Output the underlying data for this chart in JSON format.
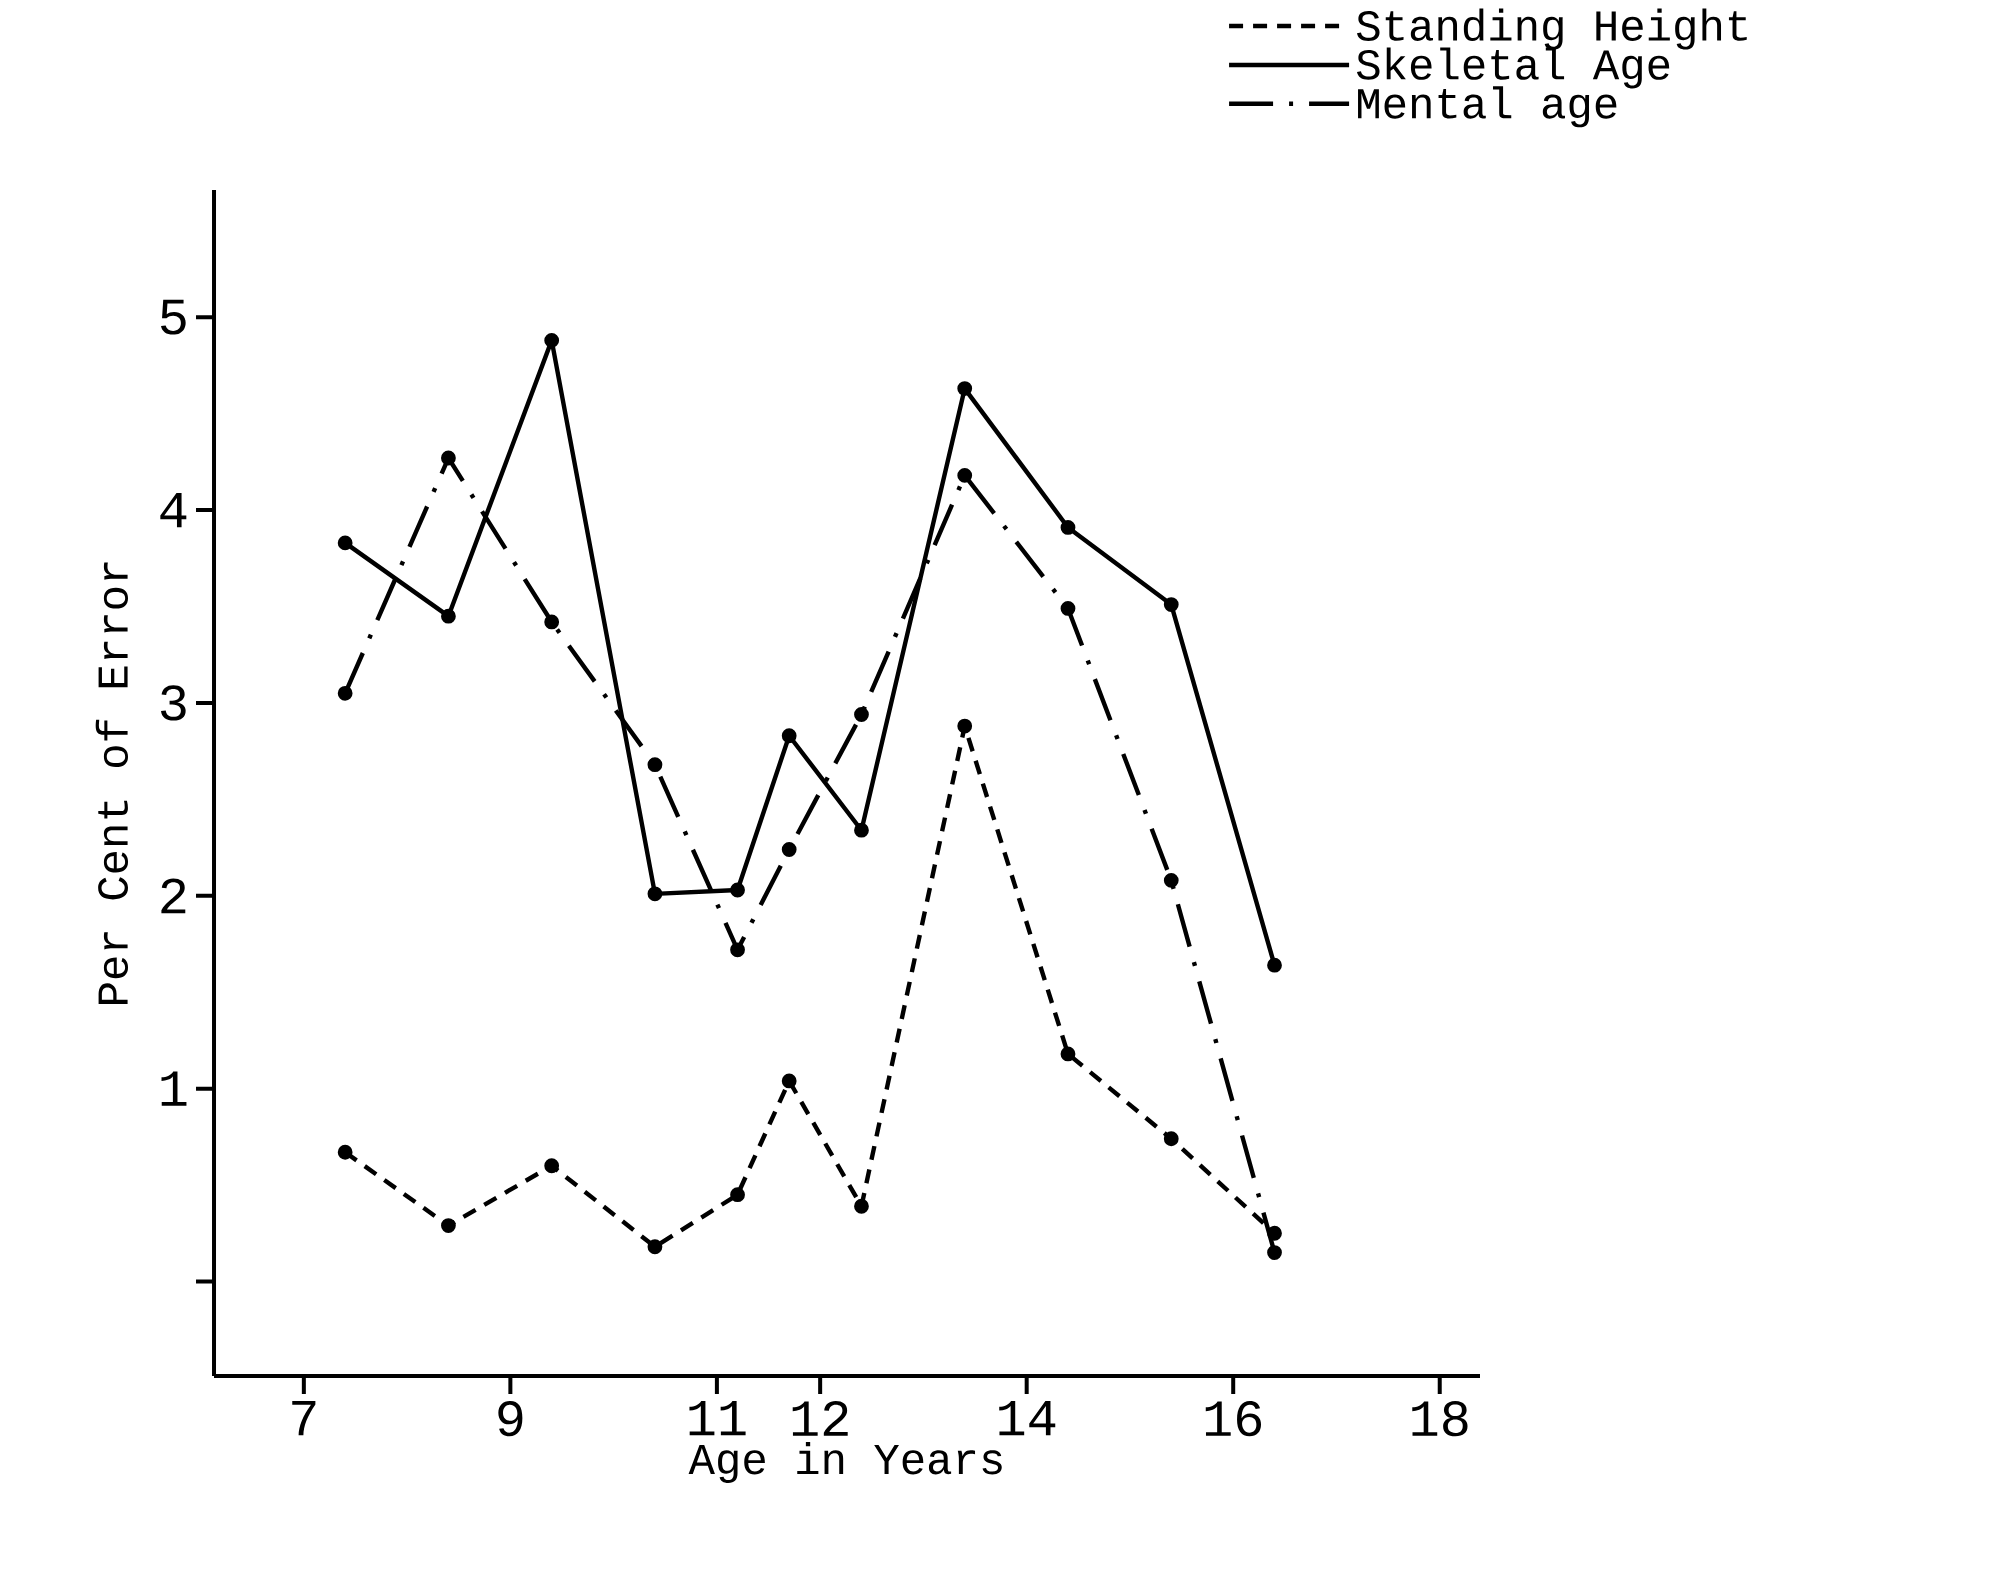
{
  "chart_data": {
    "type": "line",
    "xlabel": "Age in Years",
    "ylabel": "Per Cent of Error",
    "xlim": [
      6.13,
      18.39
    ],
    "ylim": [
      -0.49,
      5.66
    ],
    "xticks": [
      7,
      9,
      11,
      12,
      14,
      16,
      18
    ],
    "x": [
      7.4,
      8.4,
      9.4,
      10.4,
      11.2,
      11.7,
      12.4,
      13.4,
      14.4,
      15.4,
      16.4
    ],
    "yticks": [
      {
        "value": 0,
        "label": null
      },
      1,
      2,
      3,
      4,
      5
    ],
    "grid": false,
    "legend": "top right",
    "marker": "circle",
    "series": [
      {
        "name": "Standing Height",
        "color": "#000000",
        "line_style": "dashed",
        "values": [
          0.67,
          0.29,
          0.6,
          0.18,
          0.45,
          1.04,
          0.39,
          2.88,
          1.18,
          0.74,
          0.25
        ]
      },
      {
        "name": "Skeletal Age",
        "color": "#000000",
        "line_style": "solid",
        "values": [
          3.83,
          3.45,
          4.88,
          2.01,
          2.03,
          2.83,
          2.34,
          4.63,
          3.91,
          3.51,
          1.64
        ]
      },
      {
        "name": "Mental age",
        "color": "#000000",
        "line_style": "dashdot",
        "values": [
          3.05,
          4.27,
          3.42,
          2.68,
          1.72,
          2.24,
          2.94,
          4.18,
          3.49,
          2.08,
          0.15
        ]
      }
    ]
  }
}
